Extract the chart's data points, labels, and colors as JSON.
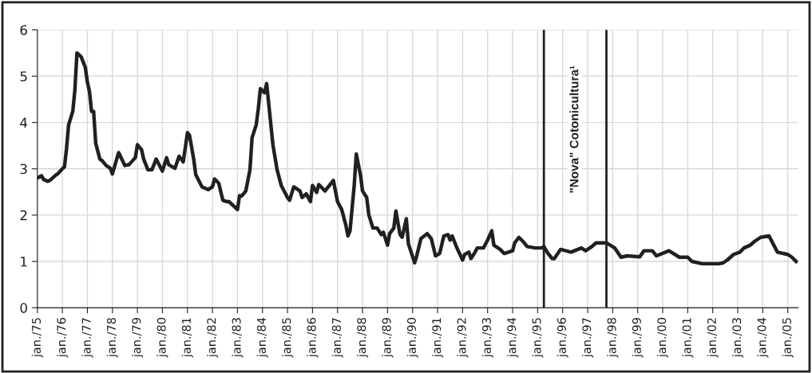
{
  "chart_data": {
    "type": "line",
    "x": [
      "1975-01",
      "1975-03",
      "1975-04",
      "1975-06",
      "1975-07",
      "1975-10",
      "1975-11",
      "1976-01",
      "1976-02",
      "1976-03",
      "1976-04",
      "1976-06",
      "1976-07",
      "1976-08",
      "1976-10",
      "1976-12",
      "1977-01",
      "1977-02",
      "1977-03",
      "1977-04",
      "1977-05",
      "1977-07",
      "1977-08",
      "1977-10",
      "1977-12",
      "1978-01",
      "1978-04",
      "1978-07",
      "1978-09",
      "1978-10",
      "1978-12",
      "1979-01",
      "1979-03",
      "1979-04",
      "1979-06",
      "1979-08",
      "1979-10",
      "1980-01",
      "1980-03",
      "1980-04",
      "1980-07",
      "1980-09",
      "1980-11",
      "1981-01",
      "1981-02",
      "1981-04",
      "1981-05",
      "1981-08",
      "1981-11",
      "1982-01",
      "1982-02",
      "1982-04",
      "1982-06",
      "1982-08",
      "1982-09",
      "1983-01",
      "1983-02",
      "1983-03",
      "1983-05",
      "1983-07",
      "1983-08",
      "1983-10",
      "1983-11",
      "1983-12",
      "1984-02",
      "1984-03",
      "1984-06",
      "1984-08",
      "1984-10",
      "1985-01",
      "1985-02",
      "1985-04",
      "1985-07",
      "1985-08",
      "1985-10",
      "1985-12",
      "1986-01",
      "1986-03",
      "1986-04",
      "1986-07",
      "1986-11",
      "1987-01",
      "1987-03",
      "1987-05",
      "1987-06",
      "1987-07",
      "1987-09",
      "1987-10",
      "1987-12",
      "1988-01",
      "1988-03",
      "1988-04",
      "1988-06",
      "1988-08",
      "1988-10",
      "1988-11",
      "1989-01",
      "1989-02",
      "1989-04",
      "1989-05",
      "1989-07",
      "1989-08",
      "1989-10",
      "1989-11",
      "1990-02",
      "1990-03",
      "1990-05",
      "1990-08",
      "1990-10",
      "1990-12",
      "1991-02",
      "1991-04",
      "1991-06",
      "1991-07",
      "1991-08",
      "1991-10",
      "1992-01",
      "1992-02",
      "1992-04",
      "1992-05",
      "1992-07",
      "1992-08",
      "1992-11",
      "1993-01",
      "1993-03",
      "1993-04",
      "1993-07",
      "1993-09",
      "1994-01",
      "1994-02",
      "1994-04",
      "1994-06",
      "1994-08",
      "1994-12",
      "1995-03",
      "1995-04",
      "1995-06",
      "1995-08",
      "1995-09",
      "1995-12",
      "1996-05",
      "1996-10",
      "1996-12",
      "1997-03",
      "1997-05",
      "1997-10",
      "1998-02",
      "1998-05",
      "1998-08",
      "1999-02",
      "1999-04",
      "1999-08",
      "1999-10",
      "2000-04",
      "2000-09",
      "2001-01",
      "2001-03",
      "2001-08",
      "2002-04",
      "2002-06",
      "2002-08",
      "2002-11",
      "2003-02",
      "2003-04",
      "2003-07",
      "2003-09",
      "2003-12",
      "2004-04",
      "2004-07",
      "2004-08",
      "2005-01",
      "2005-03",
      "2005-05"
    ],
    "series": [
      {
        "color": "#231f20",
        "values": [
          2.8,
          2.85,
          2.77,
          2.73,
          2.75,
          2.87,
          2.9,
          3.0,
          3.04,
          3.44,
          3.95,
          4.24,
          4.7,
          5.5,
          5.42,
          5.19,
          4.87,
          4.67,
          4.24,
          4.24,
          3.55,
          3.21,
          3.18,
          3.07,
          3.01,
          2.89,
          3.35,
          3.07,
          3.09,
          3.14,
          3.24,
          3.52,
          3.41,
          3.21,
          2.98,
          2.98,
          3.21,
          2.95,
          3.24,
          3.09,
          3.01,
          3.27,
          3.15,
          3.78,
          3.72,
          3.21,
          2.87,
          2.61,
          2.55,
          2.61,
          2.78,
          2.69,
          2.32,
          2.29,
          2.29,
          2.12,
          2.42,
          2.41,
          2.52,
          2.98,
          3.67,
          3.95,
          4.3,
          4.73,
          4.64,
          4.84,
          3.52,
          2.98,
          2.64,
          2.38,
          2.32,
          2.61,
          2.52,
          2.38,
          2.46,
          2.29,
          2.64,
          2.49,
          2.66,
          2.52,
          2.75,
          2.29,
          2.12,
          1.78,
          1.55,
          1.66,
          2.64,
          3.32,
          2.87,
          2.52,
          2.38,
          2.01,
          1.72,
          1.72,
          1.58,
          1.63,
          1.35,
          1.6,
          1.72,
          2.09,
          1.58,
          1.52,
          1.92,
          1.38,
          0.97,
          1.12,
          1.49,
          1.6,
          1.49,
          1.12,
          1.17,
          1.55,
          1.58,
          1.46,
          1.55,
          1.32,
          1.03,
          1.15,
          1.2,
          1.06,
          1.2,
          1.29,
          1.29,
          1.46,
          1.66,
          1.35,
          1.26,
          1.17,
          1.23,
          1.4,
          1.52,
          1.43,
          1.32,
          1.29,
          1.29,
          1.32,
          1.17,
          1.06,
          1.06,
          1.26,
          1.2,
          1.29,
          1.23,
          1.32,
          1.4,
          1.4,
          1.29,
          1.09,
          1.12,
          1.1,
          1.23,
          1.23,
          1.12,
          1.23,
          1.09,
          1.09,
          1.0,
          0.95,
          0.95,
          0.97,
          1.03,
          1.15,
          1.2,
          1.29,
          1.35,
          1.43,
          1.52,
          1.55,
          1.29,
          1.2,
          1.15,
          1.09,
          1.0
        ]
      }
    ],
    "xlim": [
      "1975-01",
      "2005-06"
    ],
    "xticks": [
      {
        "value": "1975-01",
        "label": "jan./75"
      },
      {
        "value": "1976-01",
        "label": "jan./76"
      },
      {
        "value": "1977-01",
        "label": "jan./77"
      },
      {
        "value": "1978-01",
        "label": "jan./78"
      },
      {
        "value": "1979-01",
        "label": "jan./79"
      },
      {
        "value": "1980-01",
        "label": "jan./80"
      },
      {
        "value": "1981-01",
        "label": "jan./81"
      },
      {
        "value": "1982-01",
        "label": "jan./82"
      },
      {
        "value": "1983-01",
        "label": "jan./83"
      },
      {
        "value": "1984-01",
        "label": "jan./84"
      },
      {
        "value": "1985-01",
        "label": "jan./85"
      },
      {
        "value": "1986-01",
        "label": "jan./86"
      },
      {
        "value": "1987-01",
        "label": "jan./87"
      },
      {
        "value": "1988-01",
        "label": "jan./88"
      },
      {
        "value": "1989-01",
        "label": "jan./89"
      },
      {
        "value": "1990-01",
        "label": "jan./90"
      },
      {
        "value": "1991-01",
        "label": "jan./91"
      },
      {
        "value": "1992-01",
        "label": "jan./92"
      },
      {
        "value": "1993-01",
        "label": "jan./93"
      },
      {
        "value": "1994-01",
        "label": "jan./94"
      },
      {
        "value": "1995-01",
        "label": "jan./95"
      },
      {
        "value": "1996-01",
        "label": "jan./96"
      },
      {
        "value": "1997-01",
        "label": "jan./97"
      },
      {
        "value": "1998-01",
        "label": "jan./98"
      },
      {
        "value": "1999-01",
        "label": "jan./99"
      },
      {
        "value": "2000-01",
        "label": "jan./00"
      },
      {
        "value": "2001-01",
        "label": "jan./01"
      },
      {
        "value": "2002-01",
        "label": "jan./02"
      },
      {
        "value": "2003-01",
        "label": "jan./03"
      },
      {
        "value": "2004-01",
        "label": "jan./04"
      },
      {
        "value": "2005-01",
        "label": "jan./05"
      }
    ],
    "ylim": [
      0,
      6
    ],
    "yticks": [
      0,
      1,
      2,
      3,
      4,
      5,
      6
    ],
    "grid": true,
    "legend": false,
    "marker": "none",
    "line_style": "solid",
    "ref_lines": [
      {
        "axis": "x",
        "value": "1995-04",
        "color": "#231f20"
      },
      {
        "axis": "x",
        "value": "1997-10",
        "color": "#231f20"
      }
    ],
    "annotations": [
      "\"Nova\" Cotonicultura¹"
    ]
  }
}
